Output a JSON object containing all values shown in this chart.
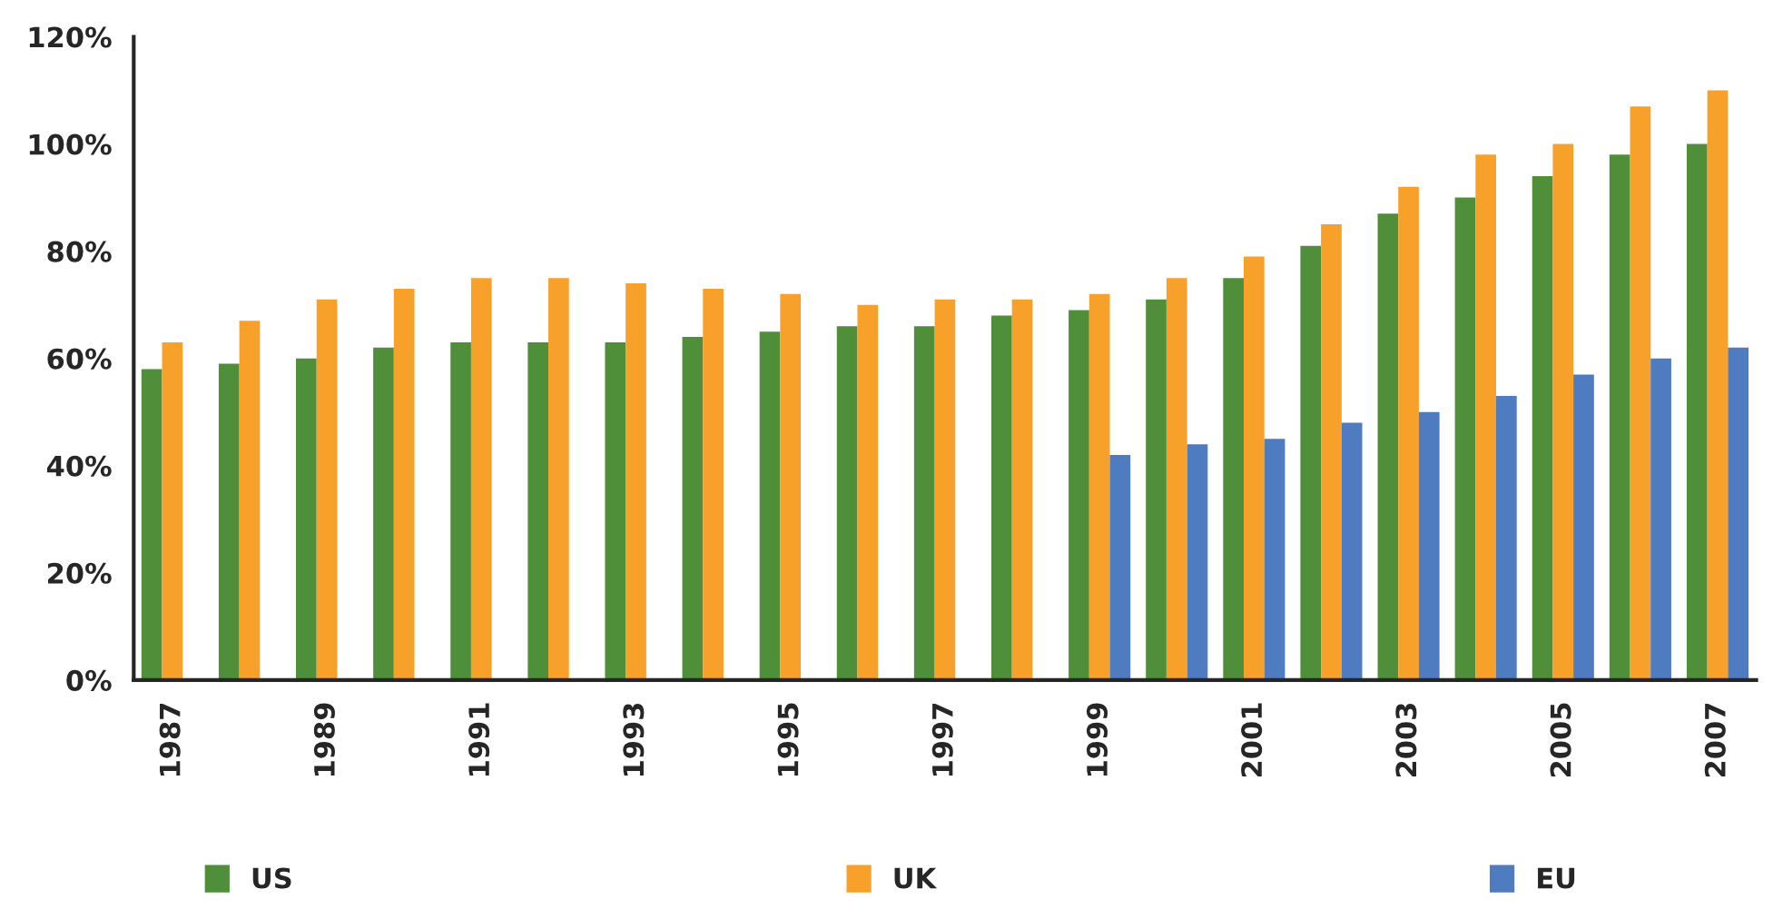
{
  "chart_data": {
    "type": "bar",
    "categories": [
      "1987",
      null,
      "1989",
      null,
      "1991",
      null,
      "1993",
      null,
      "1995",
      null,
      "1997",
      null,
      "1999",
      null,
      "2001",
      null,
      "2003",
      null,
      "2005",
      null,
      "2007"
    ],
    "series": [
      {
        "name": "US",
        "color": "#4f8f3a",
        "values": [
          58,
          59,
          60,
          62,
          63,
          63,
          63,
          64,
          65,
          66,
          66,
          68,
          69,
          71,
          75,
          81,
          87,
          90,
          94,
          98,
          100
        ]
      },
      {
        "name": "UK",
        "color": "#f7a12a",
        "values": [
          63,
          67,
          71,
          73,
          75,
          75,
          74,
          73,
          72,
          70,
          71,
          71,
          72,
          75,
          79,
          85,
          92,
          98,
          100,
          107,
          110
        ]
      },
      {
        "name": "EU",
        "color": "#4f7bc0",
        "values": [
          null,
          null,
          null,
          null,
          null,
          null,
          null,
          null,
          null,
          null,
          null,
          null,
          42,
          44,
          45,
          48,
          50,
          53,
          57,
          60,
          62
        ]
      }
    ],
    "ylim": [
      0,
      120
    ],
    "yticks": [
      {
        "value": 0,
        "label": "0%"
      },
      {
        "value": 20,
        "label": "20%"
      },
      {
        "value": 40,
        "label": "40%"
      },
      {
        "value": 60,
        "label": "60%"
      },
      {
        "value": 80,
        "label": "80%"
      },
      {
        "value": 100,
        "label": "100%"
      },
      {
        "value": 120,
        "label": "120%"
      }
    ],
    "grid": false,
    "legend": "bottom"
  }
}
